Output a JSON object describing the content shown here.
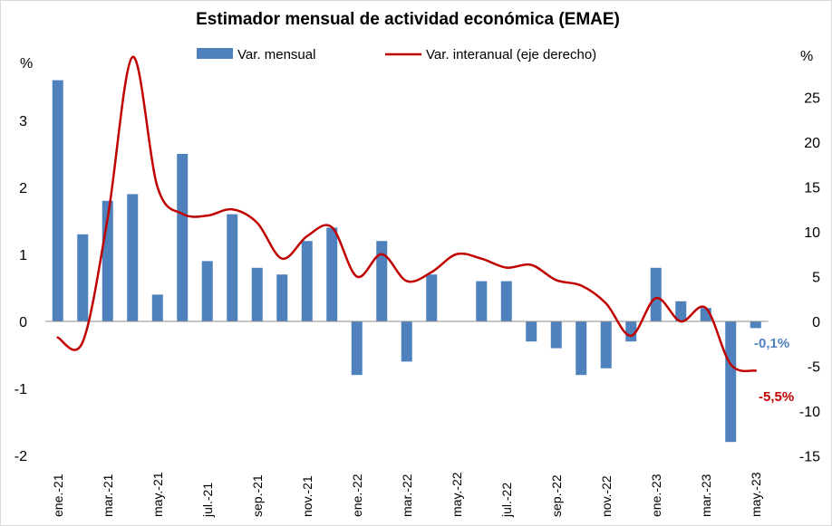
{
  "chart_data": {
    "type": "bar+line",
    "title": "Estimador mensual de actividad económica (EMAE)",
    "left_unit": "%",
    "right_unit": "%",
    "categories": [
      "ene.-21",
      "feb.-21",
      "mar.-21",
      "abr.-21",
      "may.-21",
      "jun.-21",
      "jul.-21",
      "ago.-21",
      "sep.-21",
      "oct.-21",
      "nov.-21",
      "dic.-21",
      "ene.-22",
      "feb.-22",
      "mar.-22",
      "abr.-22",
      "may.-22",
      "jun.-22",
      "jul.-22",
      "ago.-22",
      "sep.-22",
      "oct.-22",
      "nov.-22",
      "dic.-22",
      "ene.-23",
      "feb.-23",
      "mar.-23",
      "abr.-23",
      "may.-23"
    ],
    "x_tick_labels": [
      "ene.-21",
      "mar.-21",
      "may.-21",
      "jul.-21",
      "sep.-21",
      "nov.-21",
      "ene.-22",
      "mar.-22",
      "may.-22",
      "jul.-22",
      "sep.-22",
      "nov.-22",
      "ene.-23",
      "mar.-23",
      "may.-23"
    ],
    "series": [
      {
        "name": "Var. mensual",
        "kind": "bar",
        "axis": "left",
        "color": "#4f81bd",
        "values": [
          3.6,
          1.3,
          1.8,
          1.9,
          0.4,
          2.5,
          0.9,
          1.6,
          0.8,
          0.7,
          1.2,
          1.4,
          -0.8,
          1.2,
          -0.6,
          0.7,
          0.0,
          0.6,
          0.6,
          -0.3,
          -0.4,
          -0.8,
          -0.7,
          -0.3,
          0.8,
          0.3,
          0.2,
          -1.8,
          -0.1
        ]
      },
      {
        "name": "Var. interanual (eje derecho)",
        "kind": "line",
        "axis": "right",
        "color": "#c00000",
        "values": [
          -1.8,
          -2.3,
          11.5,
          29.5,
          15.0,
          12.0,
          11.8,
          12.5,
          11.0,
          7.0,
          9.5,
          10.5,
          5.0,
          7.5,
          4.5,
          5.5,
          7.5,
          7.0,
          6.0,
          6.3,
          4.6,
          4.0,
          2.0,
          -1.6,
          2.6,
          0.0,
          1.5,
          -4.8,
          -5.5
        ]
      }
    ],
    "left_axis": {
      "ylim": [
        -2,
        4
      ],
      "ticks": [
        -2,
        -1,
        0,
        1,
        2,
        3
      ]
    },
    "right_axis": {
      "ylim": [
        -15,
        30
      ],
      "ticks": [
        -15,
        -10,
        -5,
        0,
        5,
        10,
        15,
        20,
        25
      ]
    },
    "annotations": [
      {
        "text": "-0,1%",
        "series": "Var. mensual",
        "color": "#4f81bd"
      },
      {
        "text": "-5,5%",
        "series": "Var. interanual (eje derecho)",
        "color": "#c00000"
      }
    ],
    "legend_position": "top",
    "grid": false
  }
}
